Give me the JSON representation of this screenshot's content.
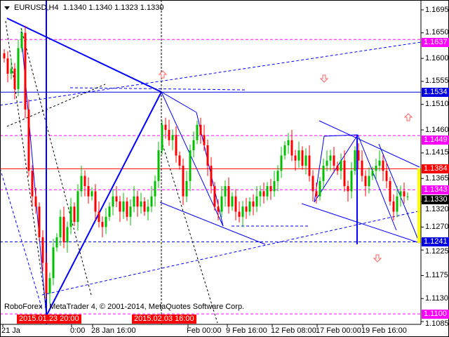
{
  "header": {
    "symbol": "EURUSD,H4",
    "ohlc": "1.1340 1.1340 1.1323 1.1330"
  },
  "footer": {
    "copyright": "RoboForex - MetaTrader 4, © 2001-2014, MetaQuotes Software Corp."
  },
  "chart_data": {
    "type": "candlestick",
    "symbol": "EURUSD",
    "timeframe": "H4",
    "ylim": [
      1.1075,
      1.171
    ],
    "price_ticks": [
      "1.1695",
      "1.1650",
      "1.1600",
      "1.1555",
      "1.1510",
      "1.1460",
      "1.1415",
      "1.1365",
      "1.1320",
      "1.1270",
      "1.1225",
      "1.1175",
      "1.1130",
      "1.1085"
    ],
    "time_labels": [
      "21 Ja",
      "0:00",
      "28 Jan 16:00",
      "Feb 00:00",
      "9 Feb 16:00",
      "12 Feb 08:00",
      "17 Feb 00:00",
      "19 Feb 16:00"
    ],
    "crosshair_time_labels": [
      "2015.01.23 20:00",
      "2015.02.03 16:00"
    ],
    "price_levels": [
      {
        "price": "1.1637",
        "color": "#ff00ff",
        "style": "dashed"
      },
      {
        "price": "1.1534",
        "color": "#0000e0",
        "style": "solid"
      },
      {
        "price": "1.1449",
        "color": "#ff00ff",
        "style": "dashed"
      },
      {
        "price": "1.1384",
        "color": "#ff0000",
        "style": "solid"
      },
      {
        "price": "1.1343",
        "color": "#ff00ff",
        "style": "dashed"
      },
      {
        "price": "1.1330",
        "color": "#000000",
        "style": "bid"
      },
      {
        "price": "1.1241",
        "color": "#0000e0",
        "style": "dashed"
      },
      {
        "price": "1.1100",
        "color": "#ff00ff",
        "style": "dashed"
      }
    ],
    "closes": [
      1.16,
      1.157,
      1.158,
      1.154,
      1.162,
      1.165,
      1.15,
      1.138,
      1.133,
      1.131,
      1.125,
      1.12,
      1.114,
      1.117,
      1.123,
      1.125,
      1.129,
      1.124,
      1.127,
      1.131,
      1.128,
      1.134,
      1.137,
      1.135,
      1.133,
      1.134,
      1.13,
      1.128,
      1.127,
      1.129,
      1.131,
      1.133,
      1.132,
      1.13,
      1.132,
      1.129,
      1.131,
      1.133,
      1.131,
      1.132,
      1.13,
      1.131,
      1.133,
      1.136,
      1.142,
      1.147,
      1.146,
      1.144,
      1.145,
      1.141,
      1.139,
      1.133,
      1.136,
      1.142,
      1.144,
      1.147,
      1.145,
      1.143,
      1.139,
      1.135,
      1.131,
      1.13,
      1.133,
      1.135,
      1.131,
      1.133,
      1.13,
      1.129,
      1.131,
      1.13,
      1.132,
      1.131,
      1.133,
      1.134,
      1.133,
      1.135,
      1.134,
      1.136,
      1.138,
      1.141,
      1.143,
      1.144,
      1.141,
      1.14,
      1.142,
      1.139,
      1.141,
      1.137,
      1.134,
      1.133,
      1.136,
      1.139,
      1.14,
      1.141,
      1.139,
      1.138,
      1.14,
      1.135,
      1.134,
      1.138,
      1.142,
      1.14,
      1.137,
      1.135,
      1.137,
      1.138,
      1.139,
      1.14,
      1.138,
      1.136,
      1.132,
      1.13,
      1.133,
      1.134,
      1.133,
      1.133
    ],
    "colors": {
      "bull": "#00c000",
      "bear": "#ff0000",
      "pattern": "#0000ff",
      "arrow": "#ff6060",
      "highlight": "#ffff00"
    }
  }
}
